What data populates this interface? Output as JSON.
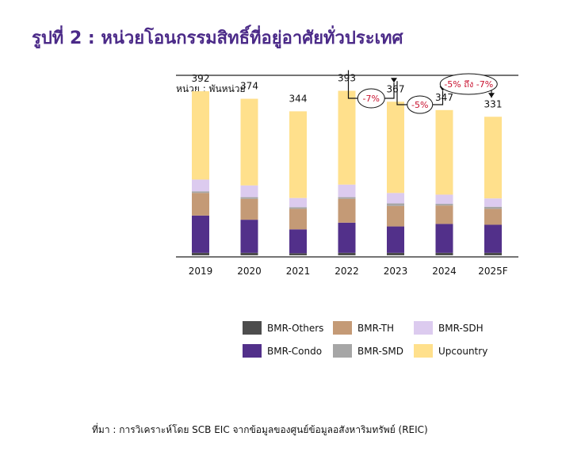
{
  "title": "รูปที่ 2 : หน่วยโอนกรรมสิทธิ์ที่อยู่อาศัยทั่วประเทศ",
  "source": "ที่มา : การวิเคราะห์โดย SCB EIC จากข้อมูลของศูนย์ข้อมูลอสังหาริมทรัพย์ (REIC)",
  "colors": {
    "BMR-Others": "#4d4d4d",
    "BMR-Condo": "#52308a",
    "BMR-TH": "#c49a76",
    "BMR-SMD": "#a6a6a6",
    "BMR-SDH": "#dccbef",
    "Upcountry": "#ffe08c"
  },
  "chart_data": {
    "type": "bar",
    "stacked": true,
    "ylabel": "หน่วย : พันหน่วย",
    "categories": [
      "2019",
      "2020",
      "2021",
      "2022",
      "2023",
      "2024",
      "2025F"
    ],
    "totals": [
      "392",
      "374",
      "344",
      "393",
      "367",
      "347",
      "331"
    ],
    "ylim": [
      0,
      430
    ],
    "series": [
      {
        "name": "BMR-Others",
        "values": [
          6,
          6,
          5,
          6,
          6,
          6,
          6
        ]
      },
      {
        "name": "BMR-Condo",
        "values": [
          89,
          79,
          57,
          72,
          63,
          69,
          67
        ]
      },
      {
        "name": "BMR-TH",
        "values": [
          54,
          50,
          49,
          57,
          49,
          44,
          38
        ]
      },
      {
        "name": "BMR-SMD",
        "values": [
          4,
          4,
          4,
          4,
          6,
          4,
          5
        ]
      },
      {
        "name": "BMR-SDH",
        "values": [
          28,
          28,
          22,
          30,
          25,
          22,
          20
        ]
      },
      {
        "name": "Upcountry",
        "values": [
          211,
          207,
          207,
          224,
          218,
          202,
          195
        ]
      }
    ],
    "annotations": [
      "-7%",
      "-5%",
      "-5% ถึง -7%"
    ],
    "legend": [
      "BMR-Others",
      "BMR-TH",
      "BMR-SDH",
      "BMR-Condo",
      "BMR-SMD",
      "Upcountry"
    ]
  }
}
